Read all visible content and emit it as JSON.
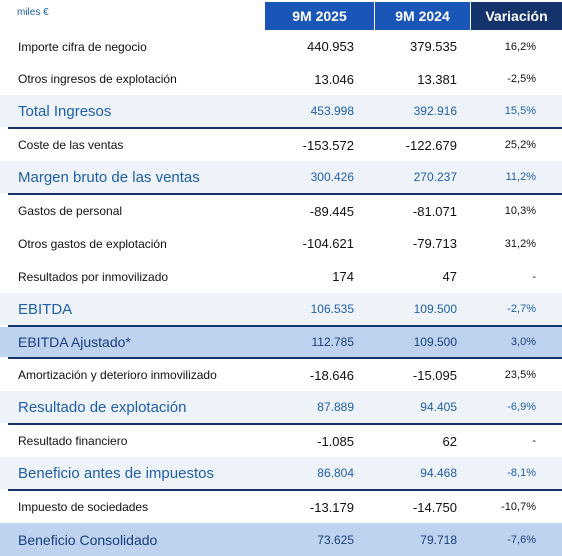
{
  "header": {
    "unit": "miles €",
    "col1": "9M 2025",
    "col2": "9M 2024",
    "col3": "Variación"
  },
  "rows": [
    {
      "label": "Importe cifra de negocio",
      "v1": "440.953",
      "v2": "379.535",
      "v3": "16,2%"
    },
    {
      "label": "Otros ingresos de explotación",
      "v1": "13.046",
      "v2": "13.381",
      "v3": "-2,5%"
    },
    {
      "label": "Total Ingresos",
      "v1": "453.998",
      "v2": "392.916",
      "v3": "15,5%"
    },
    {
      "label": "Coste de las ventas",
      "v1": "-153.572",
      "v2": "-122.679",
      "v3": "25,2%"
    },
    {
      "label": "Margen bruto de las ventas",
      "v1": "300.426",
      "v2": "270.237",
      "v3": "11,2%"
    },
    {
      "label": "Gastos  de personal",
      "v1": "-89.445",
      "v2": "-81.071",
      "v3": "10,3%"
    },
    {
      "label": "Otros gastos de explotación",
      "v1": "-104.621",
      "v2": "-79.713",
      "v3": "31,2%"
    },
    {
      "label": "Resultados por inmovilizado",
      "v1": "174",
      "v2": "47",
      "v3": "-"
    },
    {
      "label": "EBITDA",
      "v1": "106.535",
      "v2": "109.500",
      "v3": "-2,7%"
    },
    {
      "label": "EBITDA Ajustado*",
      "v1": "112.785",
      "v2": "109.500",
      "v3": "3,0%"
    },
    {
      "label": "Amortización y deterioro inmovilizado",
      "v1": "-18.646",
      "v2": "-15.095",
      "v3": "23,5%"
    },
    {
      "label": "Resultado de explotación",
      "v1": "87.889",
      "v2": "94.405",
      "v3": "-6,9%"
    },
    {
      "label": "Resultado financiero",
      "v1": "-1.085",
      "v2": "62",
      "v3": "-"
    },
    {
      "label": "Beneficio antes de impuestos",
      "v1": "86.804",
      "v2": "94.468",
      "v3": "-8,1%"
    },
    {
      "label": "Impuesto de sociedades",
      "v1": "-13.179",
      "v2": "-14.750",
      "v3": "-10,7%"
    },
    {
      "label": "Beneficio Consolidado",
      "v1": "73.625",
      "v2": "79.718",
      "v3": "-7,6%"
    }
  ]
}
